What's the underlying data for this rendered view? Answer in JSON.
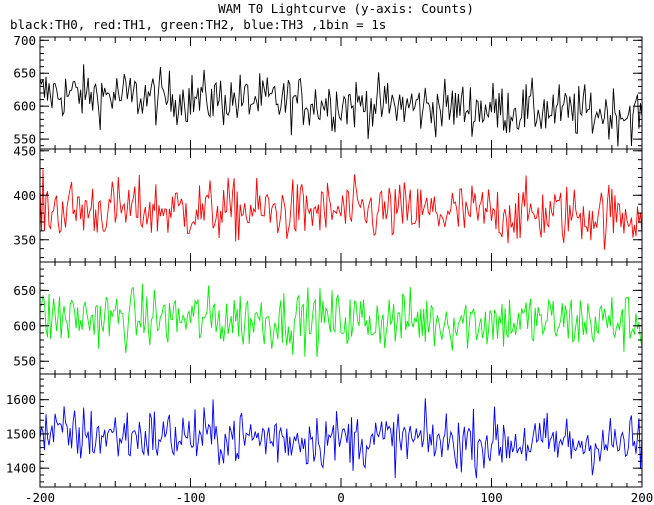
{
  "title": "WAM T0 Lightcurve (y-axis: Counts)",
  "subtitle": "black:TH0, red:TH1, green:TH2, blue:TH3 ,1bin = 1s",
  "chart_data": {
    "type": "line",
    "x_range": [
      -200,
      200
    ],
    "x_ticks": [
      -200,
      -100,
      0,
      100,
      200
    ],
    "panels": [
      {
        "name": "TH0",
        "color": "#000000",
        "ylim": [
          535,
          705
        ],
        "y_ticks": [
          550,
          600,
          650,
          700
        ],
        "mean_start": 620,
        "mean_end": 588,
        "noise": 20
      },
      {
        "name": "TH1",
        "color": "#ff0000",
        "ylim": [
          325,
          452
        ],
        "y_ticks": [
          350,
          400,
          450
        ],
        "mean_start": 385,
        "mean_end": 378,
        "noise": 17
      },
      {
        "name": "TH2",
        "color": "#00ee00",
        "ylim": [
          532,
          690
        ],
        "y_ticks": [
          550,
          600,
          650
        ],
        "mean_start": 612,
        "mean_end": 605,
        "noise": 21
      },
      {
        "name": "TH3",
        "color": "#0000ff",
        "ylim": [
          1345,
          1675
        ],
        "y_ticks": [
          1400,
          1500,
          1600
        ],
        "mean_start": 1500,
        "mean_end": 1470,
        "noise": 42
      }
    ]
  }
}
